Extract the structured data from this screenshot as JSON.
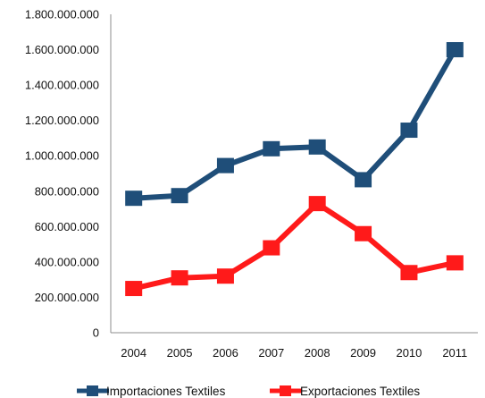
{
  "chart_data": {
    "type": "line",
    "title": "",
    "xlabel": "",
    "ylabel": "",
    "categories": [
      "2004",
      "2005",
      "2006",
      "2007",
      "2008",
      "2009",
      "2010",
      "2011"
    ],
    "ylim": [
      0,
      1800000000
    ],
    "ytick_labels": [
      "0",
      "200.000.000",
      "400.000.000",
      "600.000.000",
      "800.000.000",
      "1.000.000.000",
      "1.200.000.000",
      "1.400.000.000",
      "1.600.000.000",
      "1.800.000.000"
    ],
    "grid": false,
    "legend_position": "bottom",
    "series": [
      {
        "name": "Importaciones Textiles",
        "color": "#1f4e79",
        "values": [
          760000000,
          775000000,
          945000000,
          1040000000,
          1050000000,
          865000000,
          1145000000,
          1600000000
        ]
      },
      {
        "name": "Exportaciones Textiles",
        "color": "#ff1a1a",
        "values": [
          250000000,
          310000000,
          320000000,
          480000000,
          730000000,
          560000000,
          340000000,
          395000000
        ]
      }
    ]
  }
}
